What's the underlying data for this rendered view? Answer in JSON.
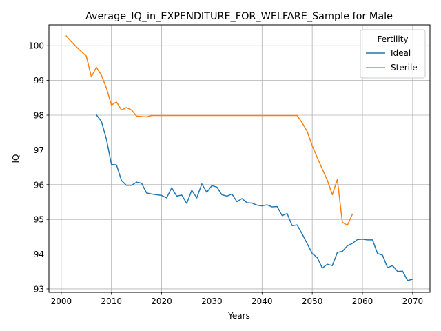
{
  "chart_data": {
    "type": "line",
    "title": "Average_IQ_in_EXPENDITURE_FOR_WELFARE_Sample for Male",
    "xlabel": "Years",
    "ylabel": "IQ",
    "xlim": [
      1997.55,
      2073.45
    ],
    "ylim": [
      92.9,
      100.6
    ],
    "xticks": [
      2000,
      2010,
      2020,
      2030,
      2040,
      2050,
      2060,
      2070
    ],
    "yticks": [
      93,
      94,
      95,
      96,
      97,
      98,
      99,
      100
    ],
    "grid": true,
    "legend": {
      "title": "Fertility",
      "position": "top-right"
    },
    "series": [
      {
        "name": "Ideal",
        "color": "#1f77b4",
        "x": [
          2007,
          2008,
          2009,
          2010,
          2011,
          2012,
          2013,
          2014,
          2015,
          2016,
          2017,
          2018,
          2019,
          2020,
          2021,
          2022,
          2023,
          2024,
          2025,
          2026,
          2027,
          2028,
          2029,
          2030,
          2031,
          2032,
          2033,
          2034,
          2035,
          2036,
          2037,
          2038,
          2039,
          2040,
          2041,
          2042,
          2043,
          2044,
          2045,
          2046,
          2047,
          2048,
          2049,
          2050,
          2051,
          2052,
          2053,
          2054,
          2055,
          2056,
          2057,
          2058,
          2059,
          2060,
          2061,
          2062,
          2063,
          2064,
          2065,
          2066,
          2067,
          2068,
          2069,
          2070
        ],
        "values": [
          98.01,
          97.82,
          97.31,
          96.58,
          96.57,
          96.12,
          95.98,
          95.98,
          96.07,
          96.04,
          95.76,
          95.73,
          95.71,
          95.69,
          95.62,
          95.91,
          95.67,
          95.7,
          95.46,
          95.84,
          95.62,
          96.02,
          95.78,
          95.97,
          95.93,
          95.71,
          95.67,
          95.73,
          95.51,
          95.6,
          95.48,
          95.47,
          95.41,
          95.39,
          95.42,
          95.36,
          95.37,
          95.11,
          95.17,
          94.82,
          94.84,
          94.58,
          94.3,
          94.02,
          93.9,
          93.6,
          93.71,
          93.67,
          94.05,
          94.08,
          94.24,
          94.31,
          94.42,
          94.43,
          94.41,
          94.41,
          94.02,
          93.97,
          93.61,
          93.67,
          93.5,
          93.51,
          93.24,
          93.28
        ]
      },
      {
        "name": "Sterile",
        "color": "#ff7f0e",
        "x": [
          2001,
          2002,
          2003,
          2004,
          2005,
          2006,
          2007,
          2008,
          2009,
          2010,
          2011,
          2012,
          2013,
          2014,
          2015,
          2016,
          2017,
          2018,
          2019,
          2020,
          2021,
          2022,
          2023,
          2024,
          2025,
          2026,
          2027,
          2028,
          2029,
          2030,
          2031,
          2032,
          2033,
          2034,
          2035,
          2036,
          2037,
          2038,
          2039,
          2040,
          2041,
          2042,
          2043,
          2044,
          2045,
          2046,
          2047,
          2048,
          2049,
          2050,
          2051,
          2052,
          2053,
          2054,
          2055,
          2056,
          2057,
          2058
        ],
        "values": [
          100.28,
          100.12,
          99.97,
          99.83,
          99.7,
          99.1,
          99.38,
          99.15,
          98.78,
          98.29,
          98.38,
          98.15,
          98.22,
          98.15,
          97.97,
          97.96,
          97.95,
          97.99,
          97.99,
          97.99,
          97.99,
          97.99,
          97.99,
          97.99,
          97.99,
          97.99,
          97.99,
          97.99,
          97.99,
          97.99,
          97.99,
          97.99,
          97.99,
          97.99,
          97.99,
          97.99,
          97.99,
          97.99,
          97.99,
          97.99,
          97.99,
          97.99,
          97.99,
          97.99,
          97.99,
          97.99,
          97.99,
          97.78,
          97.53,
          97.12,
          96.78,
          96.45,
          96.13,
          95.71,
          96.15,
          94.92,
          94.83,
          95.15
        ]
      }
    ]
  }
}
